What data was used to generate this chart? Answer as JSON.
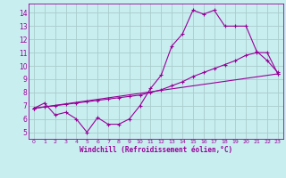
{
  "xlabel": "Windchill (Refroidissement éolien,°C)",
  "bg_color": "#c8eef0",
  "line_color": "#990099",
  "grid_color": "#aacccc",
  "xlim": [
    -0.5,
    23.5
  ],
  "ylim": [
    4.5,
    14.7
  ],
  "xticks": [
    0,
    1,
    2,
    3,
    4,
    5,
    6,
    7,
    8,
    9,
    10,
    11,
    12,
    13,
    14,
    15,
    16,
    17,
    18,
    19,
    20,
    21,
    22,
    23
  ],
  "yticks": [
    5,
    6,
    7,
    8,
    9,
    10,
    11,
    12,
    13,
    14
  ],
  "series1_x": [
    0,
    1,
    2,
    3,
    4,
    5,
    6,
    7,
    8,
    9,
    10,
    11,
    12,
    13,
    14,
    15,
    16,
    17,
    18,
    19,
    20,
    21,
    22,
    23
  ],
  "series1_y": [
    6.8,
    7.2,
    6.3,
    6.5,
    6.0,
    5.0,
    6.1,
    5.6,
    5.6,
    6.0,
    7.0,
    8.3,
    9.3,
    11.5,
    12.4,
    14.2,
    13.9,
    14.2,
    13.0,
    13.0,
    13.0,
    11.1,
    10.4,
    9.5
  ],
  "series2_x": [
    0,
    1,
    2,
    3,
    4,
    5,
    6,
    7,
    8,
    9,
    10,
    11,
    12,
    13,
    14,
    15,
    16,
    17,
    18,
    19,
    20,
    21,
    22,
    23
  ],
  "series2_y": [
    6.8,
    6.9,
    7.0,
    7.1,
    7.2,
    7.3,
    7.4,
    7.5,
    7.6,
    7.7,
    7.8,
    8.0,
    8.2,
    8.5,
    8.8,
    9.2,
    9.5,
    9.8,
    10.1,
    10.4,
    10.8,
    11.0,
    11.0,
    9.4
  ],
  "series3_x": [
    0,
    23
  ],
  "series3_y": [
    6.8,
    9.4
  ]
}
